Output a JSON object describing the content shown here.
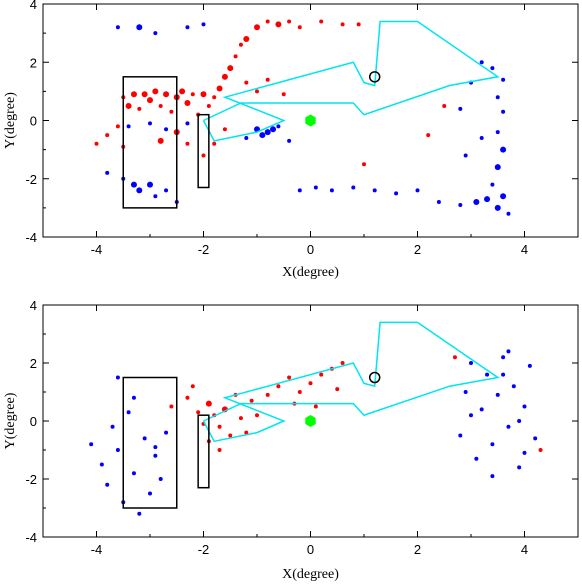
{
  "colors": {
    "red": "#ff0000",
    "blue": "#0000ff",
    "cyan": "#00e5ee",
    "green": "#00ff00",
    "black": "#000000"
  },
  "chart_data": [
    {
      "type": "scatter",
      "xlabel": "X(degree)",
      "ylabel": "Y(degree)",
      "xlim": [
        -5,
        5
      ],
      "ylim": [
        -4,
        4
      ],
      "xticks": [
        -4,
        -2,
        0,
        2,
        4
      ],
      "yticks": [
        -4,
        -2,
        0,
        2,
        4
      ],
      "series": [
        {
          "color": "red",
          "points": [
            [
              -4.0,
              -0.8,
              2
            ],
            [
              -3.8,
              -0.5,
              2
            ],
            [
              -3.6,
              -0.2,
              2
            ],
            [
              -3.5,
              0.8,
              2
            ],
            [
              -3.4,
              0.5,
              3
            ],
            [
              -3.3,
              0.9,
              3
            ],
            [
              -3.2,
              0.4,
              2
            ],
            [
              -3.1,
              0.9,
              3
            ],
            [
              -3.0,
              0.7,
              3
            ],
            [
              -2.9,
              1.0,
              3
            ],
            [
              -2.8,
              0.5,
              2
            ],
            [
              -2.7,
              0.9,
              3
            ],
            [
              -2.6,
              0.3,
              2
            ],
            [
              -2.5,
              0.8,
              3
            ],
            [
              -2.4,
              1.0,
              3
            ],
            [
              -2.3,
              0.6,
              3
            ],
            [
              -2.2,
              0.9,
              2
            ],
            [
              -2.1,
              0.2,
              2
            ],
            [
              -2.0,
              0.9,
              3
            ],
            [
              -1.9,
              0.5,
              2
            ],
            [
              -1.8,
              0.8,
              2
            ],
            [
              -1.7,
              1.1,
              3
            ],
            [
              -1.6,
              1.5,
              3
            ],
            [
              -1.5,
              1.8,
              3
            ],
            [
              -1.4,
              2.2,
              2
            ],
            [
              -1.3,
              2.6,
              2
            ],
            [
              -1.2,
              2.8,
              3
            ],
            [
              -1.0,
              3.2,
              3
            ],
            [
              -0.8,
              3.4,
              2
            ],
            [
              -0.6,
              3.3,
              3
            ],
            [
              -0.4,
              3.4,
              2
            ],
            [
              -0.2,
              3.2,
              2
            ],
            [
              0.2,
              3.4,
              2
            ],
            [
              0.6,
              3.3,
              2
            ],
            [
              0.9,
              3.3,
              2
            ],
            [
              -1.2,
              1.3,
              2
            ],
            [
              -1.0,
              1.0,
              2
            ],
            [
              -0.8,
              1.4,
              2
            ],
            [
              -0.5,
              0.9,
              2
            ],
            [
              -1.8,
              -0.8,
              2
            ],
            [
              -1.6,
              -0.3,
              2
            ],
            [
              -2.0,
              -1.2,
              2
            ],
            [
              -2.8,
              -0.7,
              3
            ],
            [
              -2.5,
              -0.4,
              3
            ],
            [
              -2.3,
              -0.8,
              2
            ],
            [
              -3.5,
              -0.9,
              2
            ],
            [
              2.2,
              -0.5,
              2
            ],
            [
              2.5,
              0.5,
              2
            ],
            [
              1.0,
              -1.5,
              2
            ]
          ]
        },
        {
          "color": "blue",
          "points": [
            [
              -3.6,
              3.2,
              2
            ],
            [
              -3.2,
              3.2,
              3
            ],
            [
              -2.9,
              3.0,
              2
            ],
            [
              -2.3,
              3.2,
              2
            ],
            [
              -2.0,
              3.3,
              2
            ],
            [
              -3.8,
              -1.8,
              2
            ],
            [
              -3.5,
              -2.0,
              2
            ],
            [
              -3.3,
              -2.2,
              3
            ],
            [
              -3.2,
              -2.4,
              3
            ],
            [
              -3.0,
              -2.2,
              3
            ],
            [
              -2.9,
              -2.6,
              2
            ],
            [
              -2.7,
              -2.4,
              2
            ],
            [
              -2.5,
              -2.8,
              2
            ],
            [
              -3.4,
              -0.2,
              2
            ],
            [
              -3.0,
              -0.1,
              2
            ],
            [
              -2.7,
              -0.3,
              2
            ],
            [
              -2.3,
              -0.1,
              2
            ],
            [
              -1.2,
              -0.6,
              2
            ],
            [
              -1.0,
              -0.3,
              3
            ],
            [
              -0.9,
              -0.5,
              3
            ],
            [
              -0.8,
              -0.4,
              3
            ],
            [
              -0.7,
              -0.3,
              3
            ],
            [
              -0.6,
              -0.2,
              2
            ],
            [
              -0.4,
              -0.7,
              2
            ],
            [
              -0.2,
              -2.4,
              2
            ],
            [
              0.1,
              -2.3,
              2
            ],
            [
              0.4,
              -2.4,
              2
            ],
            [
              0.8,
              -2.3,
              2
            ],
            [
              1.2,
              -2.4,
              2
            ],
            [
              1.6,
              -2.5,
              2
            ],
            [
              2.0,
              -2.4,
              2
            ],
            [
              2.4,
              -2.8,
              2
            ],
            [
              2.8,
              -2.9,
              2
            ],
            [
              3.1,
              -2.8,
              3
            ],
            [
              3.3,
              -2.7,
              3
            ],
            [
              3.5,
              -3.0,
              3
            ],
            [
              3.6,
              -2.6,
              3
            ],
            [
              3.7,
              -3.2,
              2
            ],
            [
              3.4,
              -2.2,
              2
            ],
            [
              3.5,
              -1.6,
              3
            ],
            [
              3.6,
              -1.0,
              3
            ],
            [
              3.5,
              -0.4,
              2
            ],
            [
              3.6,
              0.3,
              2
            ],
            [
              3.5,
              0.8,
              2
            ],
            [
              3.6,
              1.4,
              2
            ],
            [
              3.4,
              1.8,
              2
            ],
            [
              3.2,
              2.0,
              2
            ],
            [
              3.0,
              1.3,
              2
            ],
            [
              2.8,
              0.4,
              2
            ],
            [
              3.2,
              -0.6,
              2
            ],
            [
              2.9,
              -1.2,
              2
            ]
          ]
        },
        {
          "color": "green",
          "points": [
            [
              0.0,
              0.0,
              4
            ]
          ]
        }
      ],
      "polygon": [
        [
          -2.0,
          0.0
        ],
        [
          -1.8,
          -0.7
        ],
        [
          -1.0,
          -0.4
        ],
        [
          -0.5,
          0.0
        ],
        [
          -1.6,
          0.8
        ],
        [
          -0.6,
          1.3
        ],
        [
          0.8,
          2.0
        ],
        [
          1.0,
          1.3
        ],
        [
          1.2,
          1.2
        ],
        [
          1.3,
          3.4
        ],
        [
          2.0,
          3.4
        ],
        [
          3.5,
          1.5
        ],
        [
          2.6,
          1.2
        ],
        [
          1.0,
          0.2
        ],
        [
          0.8,
          0.6
        ],
        [
          0.5,
          0.6
        ],
        [
          -0.5,
          0.6
        ],
        [
          -1.3,
          0.6
        ],
        [
          -2.0,
          0.0
        ]
      ],
      "circle": [
        1.2,
        1.5
      ],
      "boxes": [
        [
          -3.5,
          1.5,
          -2.5,
          -3.0
        ],
        [
          -2.1,
          0.2,
          -1.9,
          -2.3
        ]
      ]
    },
    {
      "type": "scatter",
      "xlabel": "X(degree)",
      "ylabel": "Y(degree)",
      "xlim": [
        -5,
        5
      ],
      "ylim": [
        -4,
        4
      ],
      "xticks": [
        -4,
        -2,
        0,
        2,
        4
      ],
      "yticks": [
        -4,
        -2,
        0,
        2,
        4
      ],
      "series": [
        {
          "color": "red",
          "points": [
            [
              -2.6,
              0.5,
              2
            ],
            [
              -2.3,
              0.8,
              2
            ],
            [
              -2.1,
              0.3,
              2
            ],
            [
              -2.0,
              -0.1,
              2
            ],
            [
              -1.9,
              0.6,
              3
            ],
            [
              -1.8,
              0.2,
              2
            ],
            [
              -1.7,
              -0.2,
              2
            ],
            [
              -1.6,
              0.4,
              3
            ],
            [
              -1.5,
              -0.5,
              2
            ],
            [
              -1.4,
              0.9,
              2
            ],
            [
              -1.3,
              0.1,
              2
            ],
            [
              -1.2,
              -0.4,
              2
            ],
            [
              -1.1,
              0.7,
              2
            ],
            [
              -1.0,
              0.2,
              2
            ],
            [
              -0.8,
              0.9,
              2
            ],
            [
              -0.6,
              1.2,
              2
            ],
            [
              -0.4,
              1.5,
              2
            ],
            [
              -0.2,
              1.0,
              2
            ],
            [
              0.0,
              1.3,
              2
            ],
            [
              0.2,
              1.6,
              2
            ],
            [
              0.4,
              1.8,
              2
            ],
            [
              0.6,
              2.0,
              2
            ],
            [
              -0.3,
              0.6,
              2
            ],
            [
              0.1,
              0.5,
              2
            ],
            [
              0.5,
              1.1,
              2
            ],
            [
              -1.9,
              -0.7,
              2
            ],
            [
              -1.7,
              -1.0,
              2
            ],
            [
              -2.2,
              1.2,
              2
            ],
            [
              2.7,
              2.2,
              2
            ],
            [
              4.3,
              -1.0,
              2
            ]
          ]
        },
        {
          "color": "blue",
          "points": [
            [
              -4.1,
              -0.8,
              2
            ],
            [
              -3.9,
              -1.5,
              2
            ],
            [
              -3.8,
              -2.2,
              2
            ],
            [
              -3.7,
              -0.2,
              2
            ],
            [
              -3.6,
              -1.0,
              2
            ],
            [
              -3.5,
              -2.8,
              2
            ],
            [
              -3.4,
              0.3,
              2
            ],
            [
              -3.3,
              -1.8,
              2
            ],
            [
              -3.2,
              -3.2,
              2
            ],
            [
              -3.1,
              -0.6,
              2
            ],
            [
              -3.0,
              -2.5,
              2
            ],
            [
              -2.9,
              -1.2,
              2
            ],
            [
              -2.8,
              -2.0,
              2
            ],
            [
              -2.7,
              -0.4,
              2
            ],
            [
              -3.6,
              1.5,
              2
            ],
            [
              -3.3,
              0.8,
              2
            ],
            [
              -2.9,
              -0.9,
              2
            ],
            [
              2.8,
              -0.5,
              2
            ],
            [
              2.9,
              1.0,
              2
            ],
            [
              3.0,
              2.0,
              2
            ],
            [
              3.1,
              -1.3,
              2
            ],
            [
              3.2,
              0.4,
              2
            ],
            [
              3.3,
              1.6,
              2
            ],
            [
              3.4,
              -0.8,
              2
            ],
            [
              3.5,
              0.9,
              2
            ],
            [
              3.6,
              2.2,
              2
            ],
            [
              3.7,
              -0.2,
              2
            ],
            [
              3.8,
              1.2,
              2
            ],
            [
              3.9,
              -1.6,
              2
            ],
            [
              4.0,
              0.5,
              2
            ],
            [
              4.1,
              1.9,
              2
            ],
            [
              4.2,
              -0.6,
              2
            ],
            [
              3.7,
              2.4,
              2
            ],
            [
              3.9,
              0.0,
              2
            ],
            [
              3.4,
              -1.9,
              2
            ],
            [
              3.0,
              0.2,
              2
            ],
            [
              3.6,
              1.6,
              2
            ],
            [
              4.0,
              -1.1,
              2
            ]
          ]
        },
        {
          "color": "green",
          "points": [
            [
              0.0,
              0.0,
              4
            ]
          ]
        }
      ],
      "polygon": [
        [
          -2.0,
          0.0
        ],
        [
          -1.8,
          -0.7
        ],
        [
          -1.0,
          -0.4
        ],
        [
          -0.5,
          0.0
        ],
        [
          -1.6,
          0.8
        ],
        [
          -0.6,
          1.3
        ],
        [
          0.8,
          2.0
        ],
        [
          1.0,
          1.3
        ],
        [
          1.2,
          1.2
        ],
        [
          1.3,
          3.4
        ],
        [
          2.0,
          3.4
        ],
        [
          3.5,
          1.5
        ],
        [
          2.6,
          1.2
        ],
        [
          1.0,
          0.2
        ],
        [
          0.8,
          0.6
        ],
        [
          0.5,
          0.6
        ],
        [
          -0.5,
          0.6
        ],
        [
          -1.3,
          0.6
        ],
        [
          -2.0,
          0.0
        ]
      ],
      "circle": [
        1.2,
        1.5
      ],
      "boxes": [
        [
          -3.5,
          1.5,
          -2.5,
          -3.0
        ],
        [
          -2.1,
          0.2,
          -1.9,
          -2.3
        ]
      ]
    }
  ]
}
